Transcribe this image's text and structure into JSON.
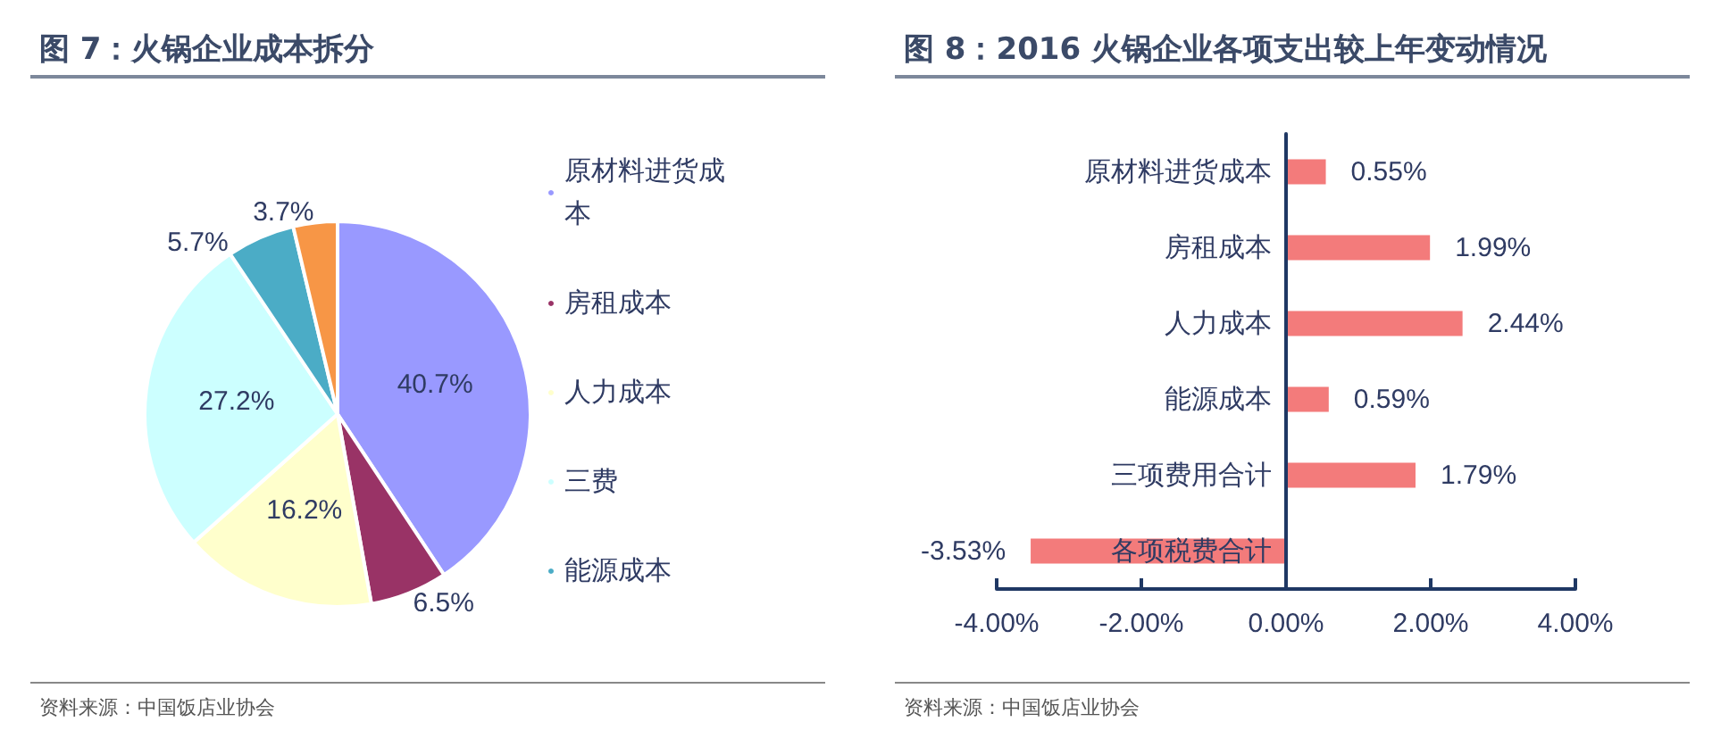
{
  "chart_data": [
    {
      "type": "pie",
      "title": "图 7：火锅企业成本拆分",
      "categories": [
        "原材料进货成本",
        "房租成本",
        "人力成本",
        "三费",
        "能源成本",
        null
      ],
      "values": [
        40.7,
        6.5,
        16.2,
        27.2,
        5.7,
        3.7
      ],
      "colors": [
        "#9999ff",
        "#993366",
        "#ffffcc",
        "#ccffff",
        "#4bacc6",
        "#f79646"
      ],
      "value_labels": [
        "40.7%",
        "6.5%",
        "16.2%",
        "27.2%",
        "5.7%",
        "3.7%"
      ],
      "legend": "right",
      "annotations": [
        "资料来源：中国饭店业协会"
      ]
    },
    {
      "type": "bar",
      "orientation": "horizontal",
      "title": "图 8：2016 火锅企业各项支出较上年变动情况",
      "categories": [
        "原材料进货成本",
        "房租成本",
        "人力成本",
        "能源成本",
        "三项费用合计",
        "各项税费合计"
      ],
      "values": [
        0.55,
        1.99,
        2.44,
        0.59,
        1.79,
        -3.53
      ],
      "color": "#f37b7b",
      "xlim": [
        -4,
        4
      ],
      "xticks": [
        {
          "value": -4,
          "label": "-4.00%"
        },
        {
          "value": -2,
          "label": "-2.00%"
        },
        {
          "value": 0,
          "label": "0.00%"
        },
        {
          "value": 2,
          "label": "2.00%"
        },
        {
          "value": 4,
          "label": "4.00%"
        }
      ],
      "value_labels": [
        "0.55%",
        "1.99%",
        "2.44%",
        "0.59%",
        "1.79%",
        "-3.53%"
      ],
      "annotations": [
        "资料来源：中国饭店业协会"
      ]
    }
  ]
}
